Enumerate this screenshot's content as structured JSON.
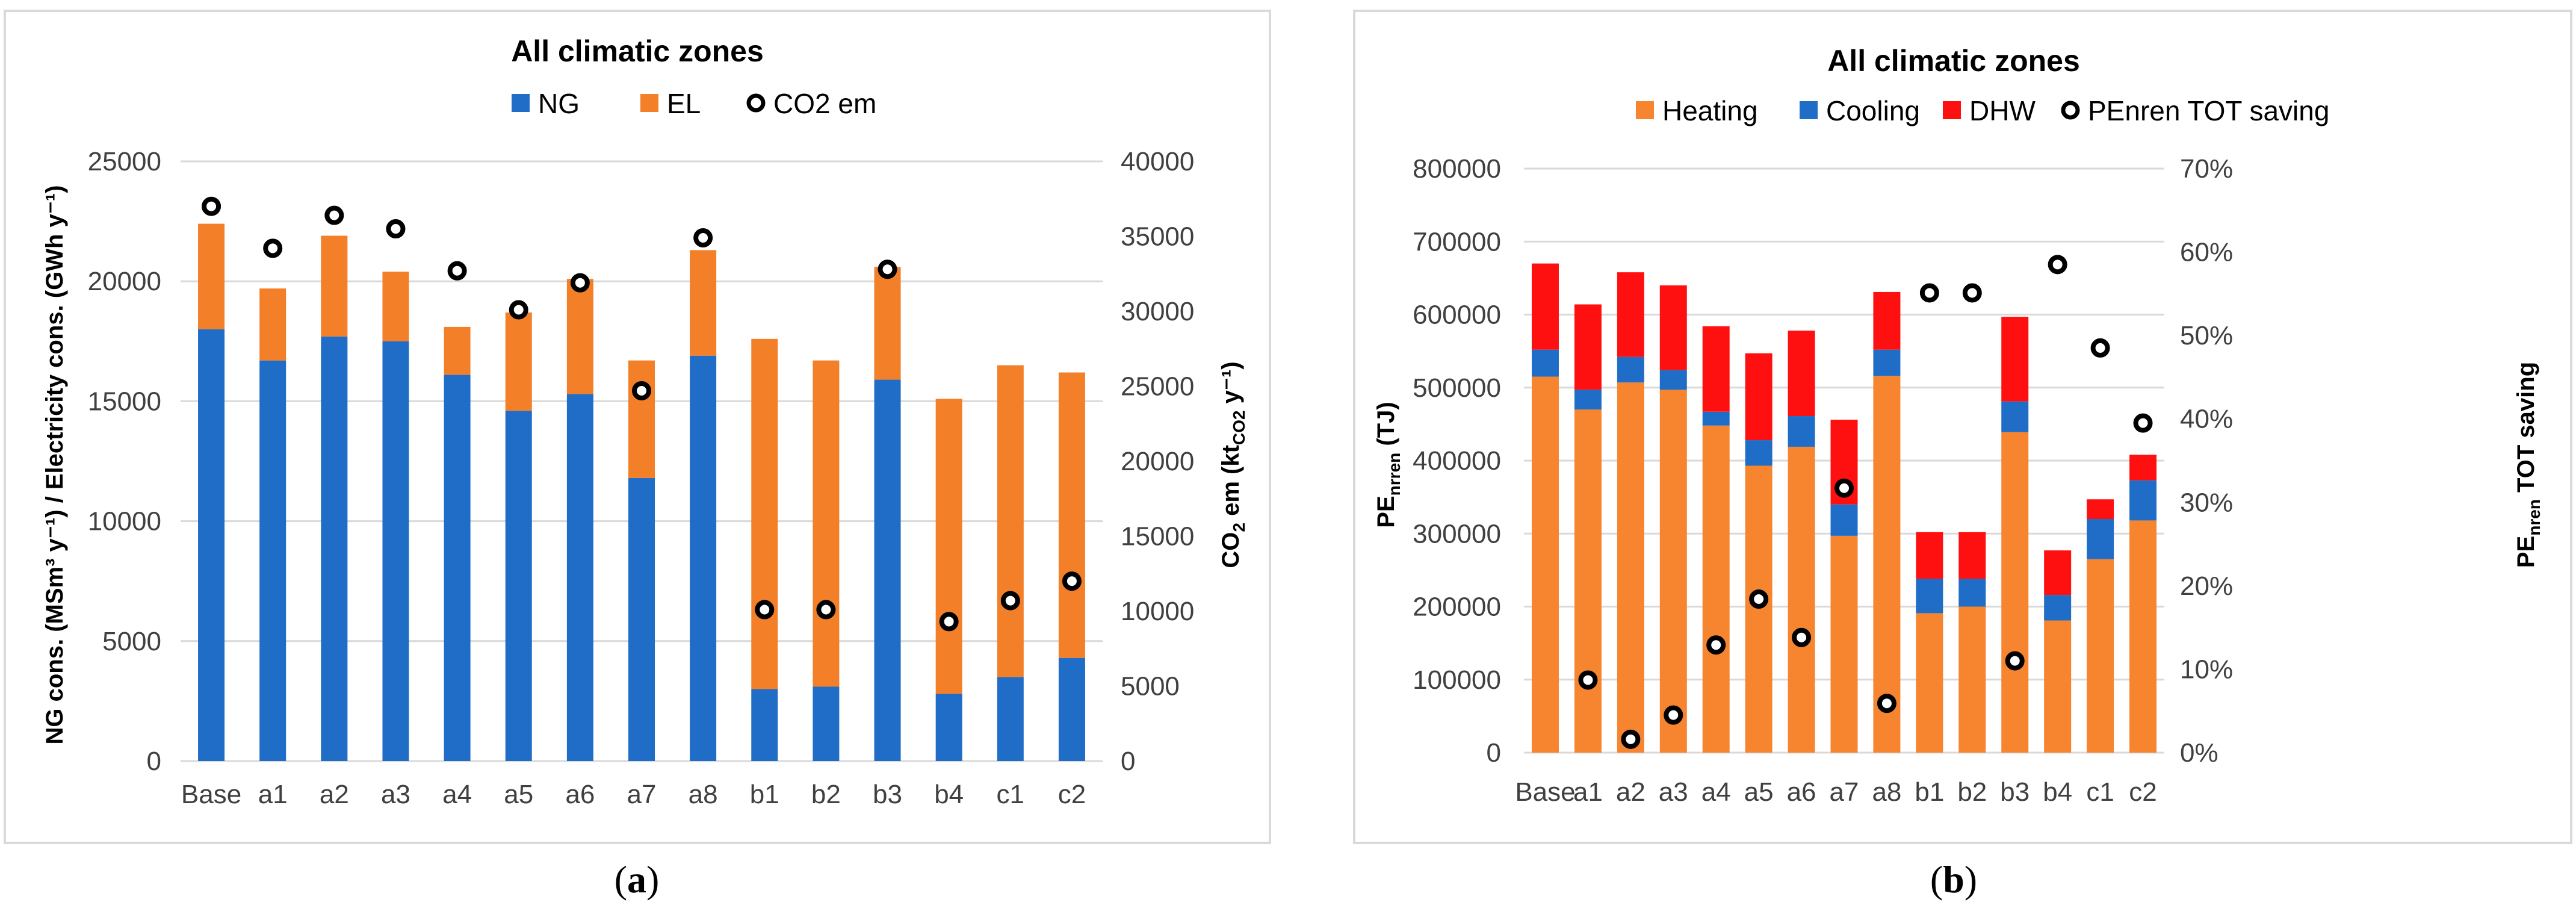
{
  "chart_data": [
    {
      "type": "bar",
      "stacked": true,
      "panel_label": "a",
      "title": "All climatic zones",
      "categories": [
        "Base",
        "a1",
        "a2",
        "a3",
        "a4",
        "a5",
        "a6",
        "a7",
        "a8",
        "b1",
        "b2",
        "b3",
        "b4",
        "c1",
        "c2"
      ],
      "series": [
        {
          "name": "NG",
          "axis": "left",
          "color": "#1f6dc6",
          "values": [
            18000,
            16700,
            17700,
            17500,
            16100,
            14600,
            15300,
            11800,
            16900,
            3000,
            3100,
            15900,
            2800,
            3500,
            4300
          ]
        },
        {
          "name": "EL",
          "axis": "left",
          "color": "#f47f29",
          "values": [
            4400,
            3000,
            4200,
            2900,
            2000,
            4100,
            4800,
            4900,
            4400,
            14600,
            13600,
            4700,
            12300,
            13000,
            11900
          ]
        },
        {
          "name": "CO2 em",
          "axis": "right",
          "marker": "circle",
          "values": [
            37000,
            34200,
            36400,
            35500,
            32700,
            30100,
            31900,
            24700,
            34900,
            10100,
            10100,
            32800,
            9300,
            10700,
            12000
          ]
        }
      ],
      "ylabel_left": "NG cons.  (MSm³ y⁻¹)  / Electricity cons.  (GWh y⁻¹)",
      "ylabel_right": "CO₂ em  (kt₍CO2₎ y⁻¹)",
      "ylim_left": [
        0,
        25000
      ],
      "ylim_right": [
        0,
        40000
      ],
      "yticks_left": [
        "0",
        "5000",
        "10000",
        "15000",
        "20000",
        "25000"
      ],
      "yticks_right": [
        "0",
        "5000",
        "10000",
        "15000",
        "20000",
        "25000",
        "30000",
        "35000",
        "40000"
      ],
      "legend": [
        "NG",
        "EL",
        "CO2 em"
      ],
      "legend_position": "top"
    },
    {
      "type": "bar",
      "stacked": true,
      "panel_label": "b",
      "title": "All climatic zones",
      "categories": [
        "Base",
        "a1",
        "a2",
        "a3",
        "a4",
        "a5",
        "a6",
        "a7",
        "a8",
        "b1",
        "b2",
        "b3",
        "b4",
        "c1",
        "c2"
      ],
      "series": [
        {
          "name": "Heating",
          "axis": "left",
          "color": "#f7842f",
          "values": [
            515000,
            470000,
            507000,
            497000,
            448000,
            393000,
            419000,
            297000,
            516000,
            191000,
            200000,
            439000,
            181000,
            265000,
            318000
          ]
        },
        {
          "name": "Cooling",
          "axis": "left",
          "color": "#1f6dc6",
          "values": [
            37000,
            27000,
            35000,
            27000,
            19000,
            35000,
            42000,
            43000,
            36000,
            47000,
            38000,
            42000,
            35000,
            55000,
            55000
          ]
        },
        {
          "name": "DHW",
          "axis": "left",
          "color": "#ff1010",
          "values": [
            118000,
            117000,
            116000,
            116000,
            117000,
            119000,
            117000,
            116000,
            79000,
            64000,
            64000,
            116000,
            61000,
            27000,
            35000
          ]
        },
        {
          "name": "PEnren TOT saving",
          "axis": "right",
          "marker": "circle",
          "values": [
            null,
            0.087,
            0.016,
            0.045,
            0.129,
            0.184,
            0.138,
            0.317,
            0.059,
            0.551,
            0.551,
            0.11,
            0.585,
            0.485,
            0.395
          ]
        }
      ],
      "ylabel_left": "PEnren (TJ)",
      "ylabel_right": "PEnren TOT saving",
      "ylim_left": [
        0,
        800000
      ],
      "ylim_right": [
        0,
        0.7
      ],
      "yticks_left": [
        "0",
        "100000",
        "200000",
        "300000",
        "400000",
        "500000",
        "600000",
        "700000",
        "800000"
      ],
      "yticks_right": [
        "0%",
        "10%",
        "20%",
        "30%",
        "40%",
        "50%",
        "60%",
        "70%"
      ],
      "legend": [
        "Heating",
        "Cooling",
        "DHW",
        "PEnren TOT saving"
      ],
      "legend_position": "top"
    }
  ],
  "labels": {
    "panel_a": {
      "letter_open": "(",
      "letter": "a",
      "letter_close": ")",
      "ylabel_left": "NG cons.  (MSm³ y⁻¹)  / Electricity cons.  (GWh y⁻¹)",
      "ylabel_right_main": "CO",
      "ylabel_right_sub": "2",
      "ylabel_right_mid": " em  (kt",
      "ylabel_right_sub2": "CO2",
      "ylabel_right_end": " y⁻¹)"
    },
    "panel_b": {
      "letter_open": "(",
      "letter": "b",
      "letter_close": ")",
      "ylabel_left_main": "PE",
      "ylabel_left_sub": "nrren",
      "ylabel_left_end": " (TJ)",
      "ylabel_right_main": "PE",
      "ylabel_right_sub": "nren",
      "ylabel_right_end": " TOT saving"
    }
  }
}
